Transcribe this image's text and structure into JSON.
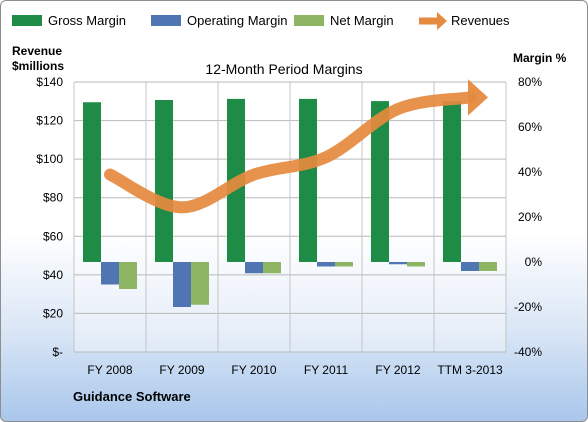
{
  "chart_data": {
    "type": "bar",
    "title": "12-Month Period Margins",
    "left_axis_label": [
      "Revenue",
      "$millions"
    ],
    "right_axis_label": "Margin %",
    "footer": "Guidance Software",
    "categories": [
      "FY 2008",
      "FY 2009",
      "FY 2010",
      "FY 2011",
      "FY 2012",
      "TTM 3-2013"
    ],
    "left_axis": {
      "ticks": [
        0,
        20,
        40,
        60,
        80,
        100,
        120,
        140
      ],
      "tick_labels": [
        "$-",
        "$20",
        "$40",
        "$60",
        "$80",
        "$100",
        "$120",
        "$140"
      ],
      "ylim": [
        0,
        140
      ]
    },
    "right_axis": {
      "ticks": [
        -40,
        -20,
        0,
        20,
        40,
        60,
        80
      ],
      "tick_labels": [
        "-40%",
        "-20%",
        "0%",
        "20%",
        "40%",
        "60%",
        "80%"
      ],
      "ylim": [
        -40,
        80
      ]
    },
    "grid": true,
    "legend_position": "top",
    "series": [
      {
        "name": "Gross Margin",
        "type": "bar",
        "axis": "right",
        "color": "#1e8c46",
        "values": [
          71,
          72,
          72.5,
          72.5,
          71.5,
          71.5
        ]
      },
      {
        "name": "Operating Margin",
        "type": "bar",
        "axis": "right",
        "color": "#4f76b2",
        "values": [
          -10,
          -20,
          -5,
          -2,
          -1,
          -4
        ]
      },
      {
        "name": "Net Margin",
        "type": "bar",
        "axis": "right",
        "color": "#8db563",
        "values": [
          -12,
          -19,
          -5,
          -2,
          -2,
          -4
        ]
      },
      {
        "name": "Revenues",
        "type": "line",
        "axis": "left",
        "color": "#e58a3e",
        "values": [
          92,
          75,
          92,
          101,
          126,
          132
        ]
      }
    ]
  }
}
